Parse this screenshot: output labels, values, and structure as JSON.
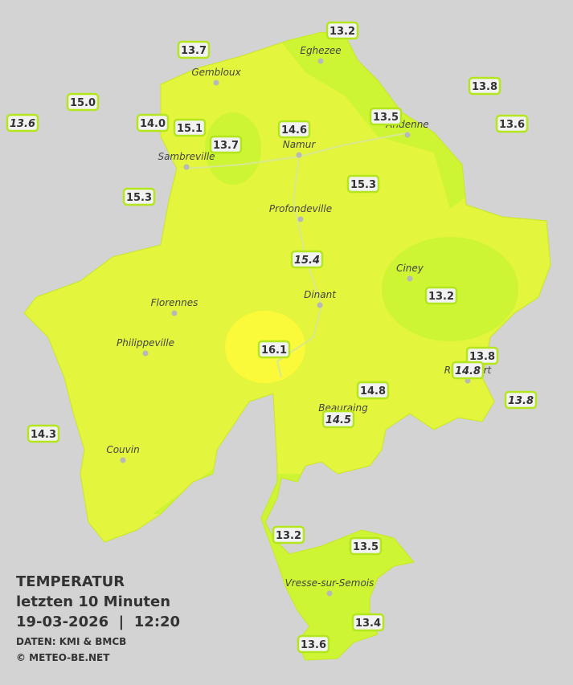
{
  "legend": {
    "title": "TEMPERATUR",
    "period": "letzten 10 Minuten",
    "timestamp": "19-03-2026  |  12:20",
    "source": "DATEN: KMI & BMCB",
    "copyright": "© METEO-BE.NET"
  },
  "cities": [
    "Eghezee",
    "Gembloux",
    "Andenne",
    "Namur",
    "Sambreville",
    "Profondeville",
    "Ciney",
    "Dinant",
    "Florennes",
    "Philippeville",
    "Rochefort",
    "Beauraing",
    "Couvin",
    "Vresse-sur-Semois"
  ],
  "stations": [
    {
      "value": "13.2"
    },
    {
      "value": "13.7"
    },
    {
      "value": "13.8"
    },
    {
      "value": "15.0"
    },
    {
      "value": "13.6",
      "italic": true
    },
    {
      "value": "14.0"
    },
    {
      "value": "15.1"
    },
    {
      "value": "14.6"
    },
    {
      "value": "13.5"
    },
    {
      "value": "13.6"
    },
    {
      "value": "13.7"
    },
    {
      "value": "15.3"
    },
    {
      "value": "15.3"
    },
    {
      "value": "15.4",
      "italic": true
    },
    {
      "value": "13.2"
    },
    {
      "value": "16.1"
    },
    {
      "value": "13.8"
    },
    {
      "value": "14.8",
      "italic": true
    },
    {
      "value": "14.8"
    },
    {
      "value": "13.8",
      "italic": true
    },
    {
      "value": "14.5",
      "italic": true
    },
    {
      "value": "14.3"
    },
    {
      "value": "13.2"
    },
    {
      "value": "13.5"
    },
    {
      "value": "13.4"
    },
    {
      "value": "13.6"
    }
  ]
}
